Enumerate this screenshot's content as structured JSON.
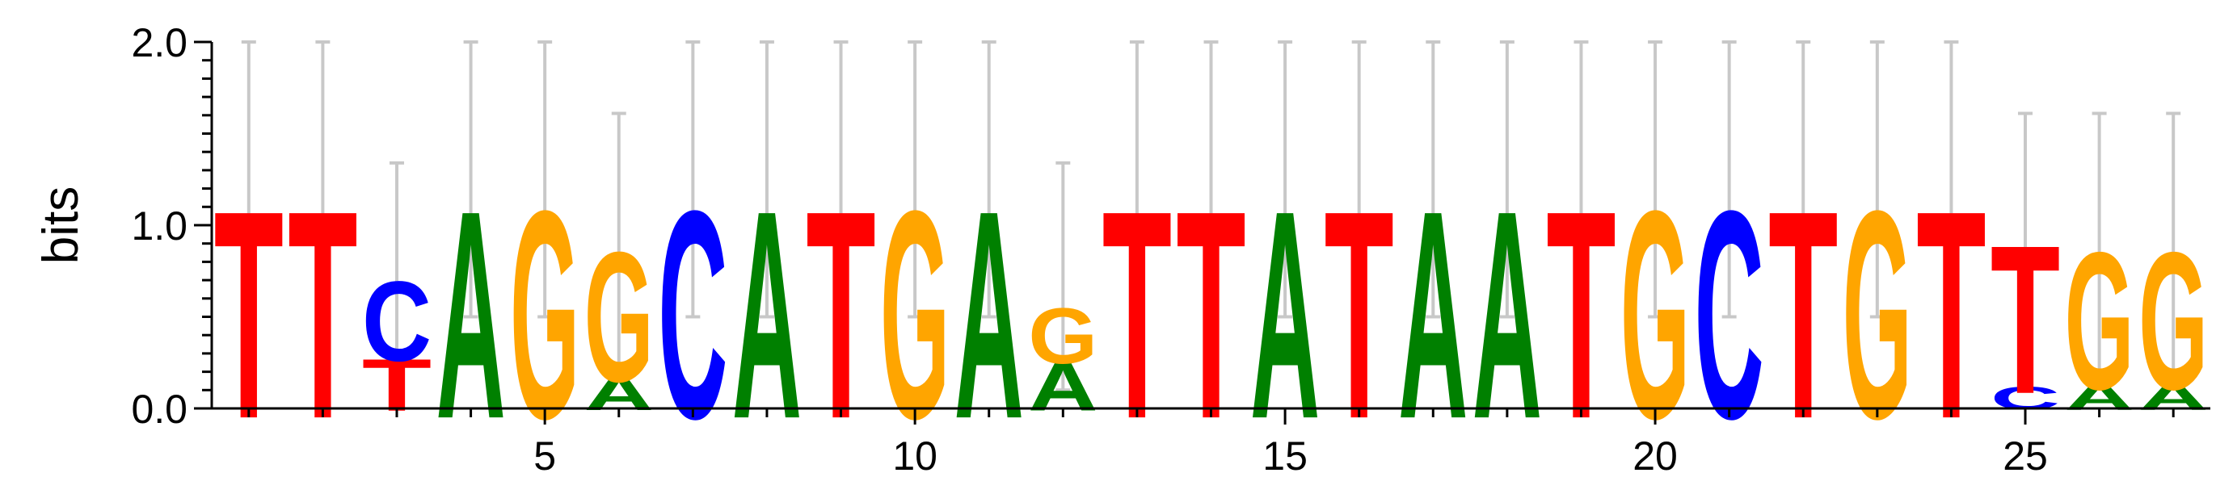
{
  "chart_data": {
    "type": "sequence-logo",
    "ylabel": "bits",
    "ylim": [
      0,
      2
    ],
    "y_ticks": [
      "0.0",
      "1.0",
      "2.0"
    ],
    "x_ticks": [
      5,
      10,
      15,
      20,
      25
    ],
    "positions": 27,
    "colors": {
      "A": "#008000",
      "C": "#0000ff",
      "G": "#ffa500",
      "T": "#ff0000"
    },
    "columns": [
      {
        "pos": 1,
        "error": [
          0.5,
          2.0
        ],
        "stack": [
          {
            "letter": "T",
            "bits": 1.12
          }
        ]
      },
      {
        "pos": 2,
        "error": [
          0.5,
          2.0
        ],
        "stack": [
          {
            "letter": "T",
            "bits": 1.12
          }
        ]
      },
      {
        "pos": 3,
        "error": [
          0.1,
          1.34
        ],
        "stack": [
          {
            "letter": "T",
            "bits": 0.28
          },
          {
            "letter": "C",
            "bits": 0.43
          }
        ]
      },
      {
        "pos": 4,
        "error": [
          0.5,
          2.0
        ],
        "stack": [
          {
            "letter": "A",
            "bits": 1.12
          }
        ]
      },
      {
        "pos": 5,
        "error": [
          0.5,
          2.0
        ],
        "stack": [
          {
            "letter": "G",
            "bits": 1.12
          }
        ]
      },
      {
        "pos": 6,
        "error": [
          0.2,
          1.61
        ],
        "stack": [
          {
            "letter": "A",
            "bits": 0.18
          },
          {
            "letter": "G",
            "bits": 0.7
          }
        ]
      },
      {
        "pos": 7,
        "error": [
          0.5,
          2.0
        ],
        "stack": [
          {
            "letter": "C",
            "bits": 1.12
          }
        ]
      },
      {
        "pos": 8,
        "error": [
          0.5,
          2.0
        ],
        "stack": [
          {
            "letter": "A",
            "bits": 1.12
          }
        ]
      },
      {
        "pos": 9,
        "error": [
          0.5,
          2.0
        ],
        "stack": [
          {
            "letter": "T",
            "bits": 1.12
          }
        ]
      },
      {
        "pos": 10,
        "error": [
          0.5,
          2.0
        ],
        "stack": [
          {
            "letter": "G",
            "bits": 1.12
          }
        ]
      },
      {
        "pos": 11,
        "error": [
          0.5,
          2.0
        ],
        "stack": [
          {
            "letter": "A",
            "bits": 1.12
          }
        ]
      },
      {
        "pos": 12,
        "error": [
          0.1,
          1.34
        ],
        "stack": [
          {
            "letter": "A",
            "bits": 0.26
          },
          {
            "letter": "G",
            "bits": 0.3
          }
        ]
      },
      {
        "pos": 13,
        "error": [
          0.5,
          2.0
        ],
        "stack": [
          {
            "letter": "T",
            "bits": 1.12
          }
        ]
      },
      {
        "pos": 14,
        "error": [
          0.5,
          2.0
        ],
        "stack": [
          {
            "letter": "T",
            "bits": 1.12
          }
        ]
      },
      {
        "pos": 15,
        "error": [
          0.5,
          2.0
        ],
        "stack": [
          {
            "letter": "A",
            "bits": 1.12
          }
        ]
      },
      {
        "pos": 16,
        "error": [
          0.5,
          2.0
        ],
        "stack": [
          {
            "letter": "T",
            "bits": 1.12
          }
        ]
      },
      {
        "pos": 17,
        "error": [
          0.5,
          2.0
        ],
        "stack": [
          {
            "letter": "A",
            "bits": 1.12
          }
        ]
      },
      {
        "pos": 18,
        "error": [
          0.5,
          2.0
        ],
        "stack": [
          {
            "letter": "A",
            "bits": 1.12
          }
        ]
      },
      {
        "pos": 19,
        "error": [
          0.5,
          2.0
        ],
        "stack": [
          {
            "letter": "T",
            "bits": 1.12
          }
        ]
      },
      {
        "pos": 20,
        "error": [
          0.5,
          2.0
        ],
        "stack": [
          {
            "letter": "G",
            "bits": 1.12
          }
        ]
      },
      {
        "pos": 21,
        "error": [
          0.5,
          2.0
        ],
        "stack": [
          {
            "letter": "C",
            "bits": 1.12
          }
        ]
      },
      {
        "pos": 22,
        "error": [
          0.5,
          2.0
        ],
        "stack": [
          {
            "letter": "T",
            "bits": 1.12
          }
        ]
      },
      {
        "pos": 23,
        "error": [
          0.5,
          2.0
        ],
        "stack": [
          {
            "letter": "G",
            "bits": 1.12
          }
        ]
      },
      {
        "pos": 24,
        "error": [
          0.5,
          2.0
        ],
        "stack": [
          {
            "letter": "T",
            "bits": 1.12
          }
        ]
      },
      {
        "pos": 25,
        "error": [
          0.2,
          1.61
        ],
        "stack": [
          {
            "letter": "C",
            "bits": 0.12
          },
          {
            "letter": "T",
            "bits": 0.8
          }
        ]
      },
      {
        "pos": 26,
        "error": [
          0.2,
          1.61
        ],
        "stack": [
          {
            "letter": "A",
            "bits": 0.14
          },
          {
            "letter": "G",
            "bits": 0.74
          }
        ]
      },
      {
        "pos": 27,
        "error": [
          0.2,
          1.61
        ],
        "stack": [
          {
            "letter": "A",
            "bits": 0.14
          },
          {
            "letter": "G",
            "bits": 0.74
          }
        ]
      }
    ]
  }
}
